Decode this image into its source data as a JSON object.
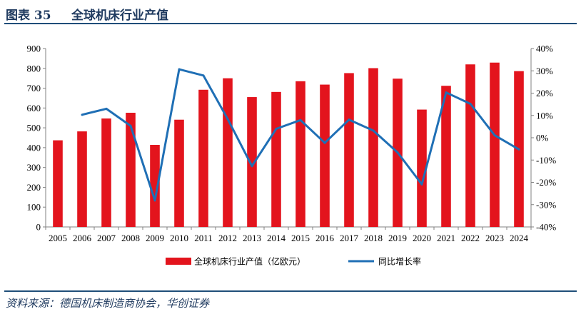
{
  "header": {
    "figure_label": "图表 35",
    "title": "全球机床行业产值"
  },
  "source": "资料来源：德国机床制造商协会，华创证券",
  "colors": {
    "bar": "#e3141d",
    "line": "#1f6fb5",
    "heading": "#1f3a5f",
    "rule": "#1f4e79"
  },
  "chart_data": {
    "type": "bar",
    "categories": [
      "2005",
      "2006",
      "2007",
      "2008",
      "2009",
      "2010",
      "2011",
      "2012",
      "2013",
      "2014",
      "2015",
      "2016",
      "2017",
      "2018",
      "2019",
      "2020",
      "2021",
      "2022",
      "2023",
      "2024"
    ],
    "series": [
      {
        "name": "全球机床行业产值（亿欧元）",
        "type": "bar",
        "axis": "left",
        "values": [
          437,
          482,
          547,
          576,
          414,
          541,
          692,
          750,
          655,
          681,
          735,
          718,
          776,
          801,
          748,
          592,
          712,
          820,
          829,
          786
        ]
      },
      {
        "name": "同比增长率",
        "type": "line",
        "axis": "right",
        "values": [
          null,
          10.3,
          13.0,
          5.3,
          -28.1,
          30.7,
          27.9,
          8.4,
          -12.7,
          4.0,
          7.9,
          -2.3,
          8.1,
          3.2,
          -6.6,
          -20.9,
          20.3,
          15.2,
          1.1,
          -5.2
        ]
      }
    ],
    "left_axis": {
      "ylim": [
        0,
        900
      ],
      "ticks": [
        "0",
        "100",
        "200",
        "300",
        "400",
        "500",
        "600",
        "700",
        "800",
        "900"
      ]
    },
    "right_axis": {
      "ylim": [
        -40,
        40
      ],
      "ticks": [
        "-40%",
        "-30%",
        "-20%",
        "-10%",
        "0%",
        "10%",
        "20%",
        "30%",
        "40%"
      ]
    },
    "grid": false,
    "legend_position": "bottom"
  }
}
